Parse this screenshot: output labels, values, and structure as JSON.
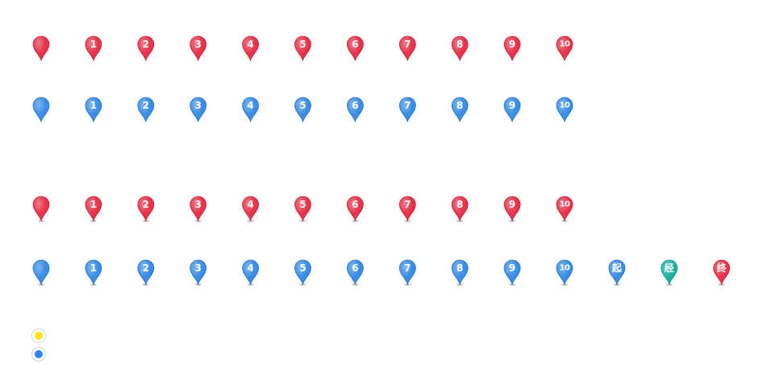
{
  "colors": {
    "red": "#e8334a",
    "red_dark": "#c71f35",
    "blue": "#3a8ee6",
    "blue_dark": "#1f6fc7",
    "teal": "#1bb2a0",
    "teal_dark": "#0e8f80",
    "yellow": "#ffe600",
    "dot_blue": "#2b86f0",
    "shadow": "#9aa3ab"
  },
  "rows": [
    {
      "name": "red-pins-row",
      "shadow": false,
      "pins": [
        {
          "label": "",
          "color": "red"
        },
        {
          "label": "1",
          "color": "red"
        },
        {
          "label": "2",
          "color": "red"
        },
        {
          "label": "3",
          "color": "red"
        },
        {
          "label": "4",
          "color": "red"
        },
        {
          "label": "5",
          "color": "red"
        },
        {
          "label": "6",
          "color": "red"
        },
        {
          "label": "7",
          "color": "red"
        },
        {
          "label": "8",
          "color": "red"
        },
        {
          "label": "9",
          "color": "red"
        },
        {
          "label": "10",
          "color": "red"
        }
      ]
    },
    {
      "name": "blue-pins-row",
      "shadow": false,
      "pins": [
        {
          "label": "",
          "color": "blue"
        },
        {
          "label": "1",
          "color": "blue"
        },
        {
          "label": "2",
          "color": "blue"
        },
        {
          "label": "3",
          "color": "blue"
        },
        {
          "label": "4",
          "color": "blue"
        },
        {
          "label": "5",
          "color": "blue"
        },
        {
          "label": "6",
          "color": "blue"
        },
        {
          "label": "7",
          "color": "blue"
        },
        {
          "label": "8",
          "color": "blue"
        },
        {
          "label": "9",
          "color": "blue"
        },
        {
          "label": "10",
          "color": "blue"
        }
      ]
    },
    {
      "name": "red-shadow-pins-row",
      "shadow": true,
      "pins": [
        {
          "label": "",
          "color": "red"
        },
        {
          "label": "1",
          "color": "red"
        },
        {
          "label": "2",
          "color": "red"
        },
        {
          "label": "3",
          "color": "red"
        },
        {
          "label": "4",
          "color": "red"
        },
        {
          "label": "5",
          "color": "red"
        },
        {
          "label": "6",
          "color": "red"
        },
        {
          "label": "7",
          "color": "red"
        },
        {
          "label": "8",
          "color": "red"
        },
        {
          "label": "9",
          "color": "red"
        },
        {
          "label": "10",
          "color": "red"
        }
      ]
    },
    {
      "name": "blue-shadow-pins-row",
      "shadow": true,
      "pins": [
        {
          "label": "",
          "color": "blue"
        },
        {
          "label": "1",
          "color": "blue"
        },
        {
          "label": "2",
          "color": "blue"
        },
        {
          "label": "3",
          "color": "blue"
        },
        {
          "label": "4",
          "color": "blue"
        },
        {
          "label": "5",
          "color": "blue"
        },
        {
          "label": "6",
          "color": "blue"
        },
        {
          "label": "7",
          "color": "blue"
        },
        {
          "label": "8",
          "color": "blue"
        },
        {
          "label": "9",
          "color": "blue"
        },
        {
          "label": "10",
          "color": "blue"
        },
        {
          "label": "起",
          "color": "blue"
        },
        {
          "label": "经",
          "color": "teal"
        },
        {
          "label": "终",
          "color": "red"
        }
      ]
    }
  ],
  "dots": [
    {
      "name": "yellow-location-dot",
      "color": "yellow"
    },
    {
      "name": "blue-location-dot",
      "color": "dot_blue"
    }
  ]
}
